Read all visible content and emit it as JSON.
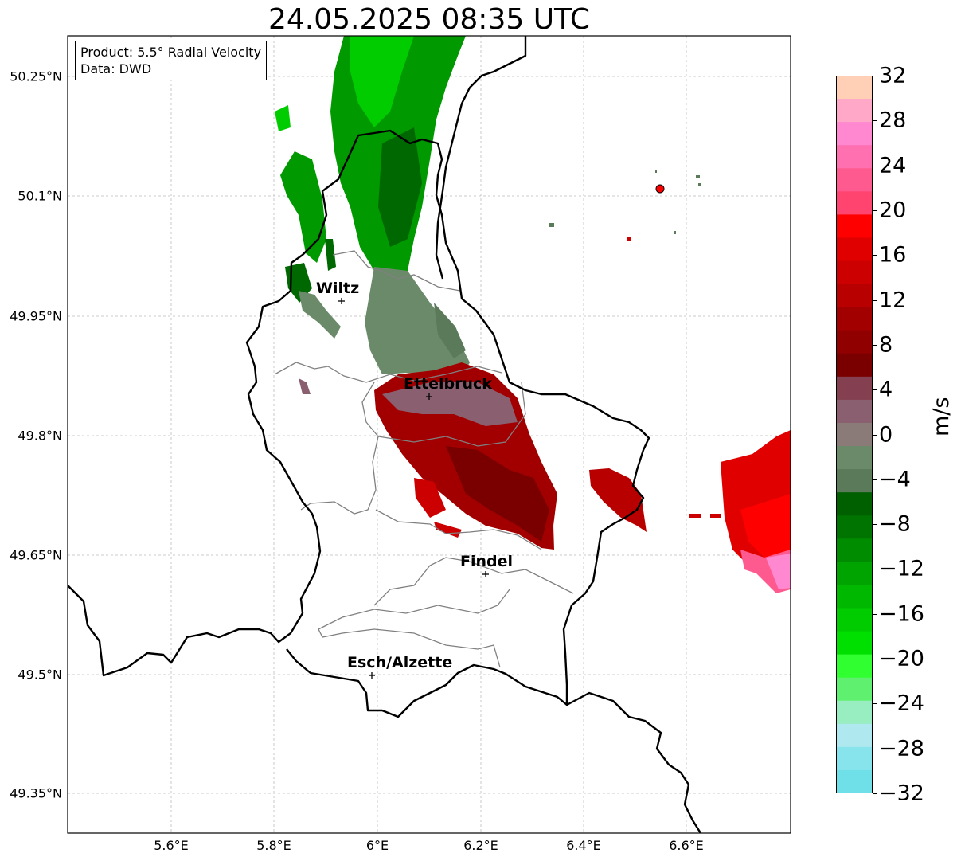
{
  "title": "24.05.2025 08:35 UTC",
  "info": {
    "product": "Product: 5.5° Radial Velocity",
    "source": "Data: DWD"
  },
  "axes": {
    "lat_labels": [
      "50.25°N",
      "50.1°N",
      "49.95°N",
      "49.8°N",
      "49.65°N",
      "49.5°N",
      "49.35°N"
    ],
    "lon_labels": [
      "5.6°E",
      "5.8°E",
      "6°E",
      "6.2°E",
      "6.4°E",
      "6.6°E"
    ],
    "grid": true
  },
  "cities": [
    {
      "name": "Wiltz"
    },
    {
      "name": "Ettelbruck"
    },
    {
      "name": "Findel"
    },
    {
      "name": "Esch/Alzette"
    }
  ],
  "colorbar": {
    "unit": "m/s",
    "min": -32,
    "max": 32,
    "ticks": [
      "32",
      "28",
      "24",
      "20",
      "16",
      "12",
      "8",
      "4",
      "0",
      "−4",
      "−8",
      "−12",
      "−16",
      "−20",
      "−24",
      "−28",
      "−32"
    ],
    "colors_top_to_bottom": [
      "#ffd0b5",
      "#ffa8c8",
      "#ff88d0",
      "#ff70b0",
      "#ff5a90",
      "#ff4470",
      "#ff0000",
      "#e00000",
      "#cc0000",
      "#b80000",
      "#a20000",
      "#900000",
      "#7a0000",
      "#844050",
      "#8a6070",
      "#8a7a78",
      "#6a8a6a",
      "#5a7a5a",
      "#006000",
      "#007400",
      "#008c00",
      "#00a400",
      "#00b800",
      "#00cc00",
      "#00e000",
      "#30ff30",
      "#60f070",
      "#98eec0",
      "#b0e8f0",
      "#88e4ec",
      "#70e0e8"
    ]
  },
  "radar_site_color": "#ff0000"
}
